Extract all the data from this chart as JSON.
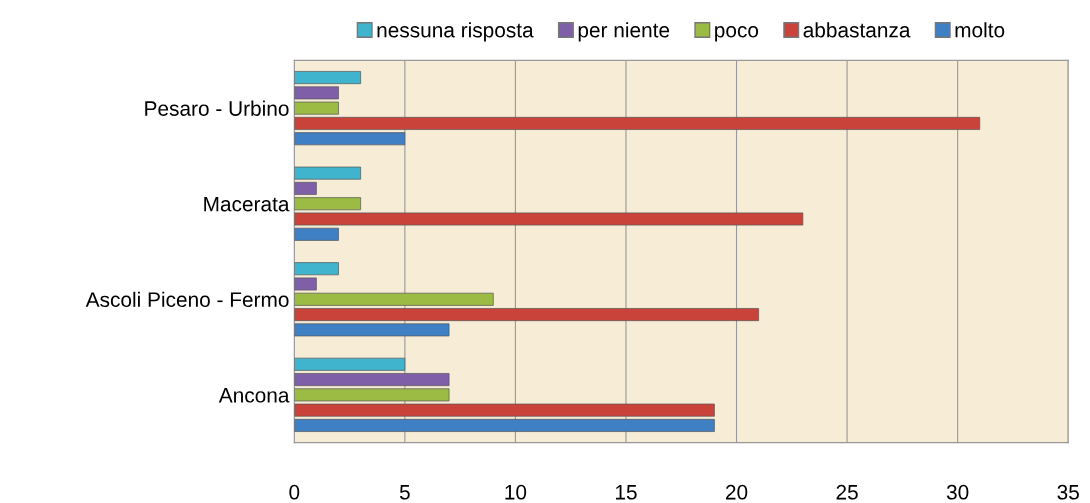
{
  "chart_data": {
    "type": "bar",
    "orientation": "horizontal",
    "categories": [
      "Pesaro - Urbino",
      "Macerata",
      "Ascoli Piceno - Fermo",
      "Ancona"
    ],
    "series": [
      {
        "name": "molto",
        "color": "#3f7fc4",
        "values": [
          5,
          2,
          7,
          19
        ]
      },
      {
        "name": "abbastanza",
        "color": "#c9433b",
        "values": [
          31,
          23,
          21,
          19
        ]
      },
      {
        "name": "poco",
        "color": "#9bbb45",
        "values": [
          2,
          3,
          9,
          7
        ]
      },
      {
        "name": "per niente",
        "color": "#7f5fa8",
        "values": [
          2,
          1,
          1,
          7
        ]
      },
      {
        "name": "nessuna risposta",
        "color": "#3fb4cc",
        "values": [
          3,
          3,
          2,
          5
        ]
      }
    ],
    "xlim": [
      0,
      35
    ],
    "xticks": [
      0,
      5,
      10,
      15,
      20,
      25,
      30,
      35
    ],
    "grid": "x",
    "legend": "top"
  }
}
